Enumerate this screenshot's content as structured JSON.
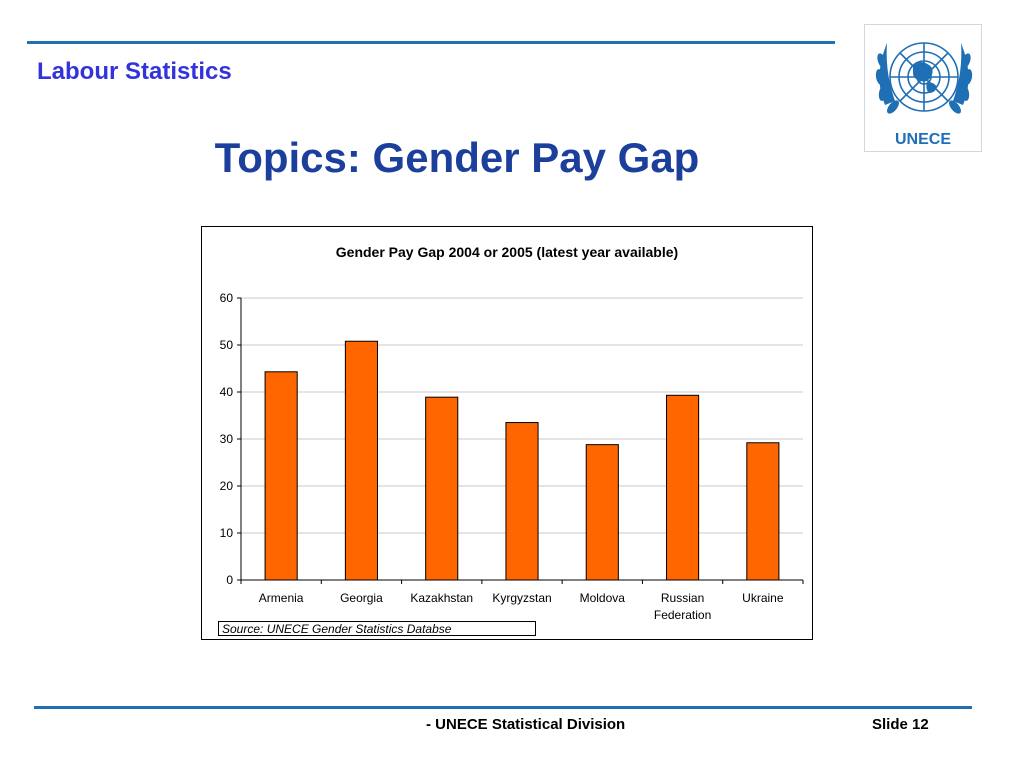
{
  "header": {
    "section_title": "Labour Statistics",
    "slide_title": "Topics: Gender Pay Gap"
  },
  "logo": {
    "text": "UNECE",
    "icon": "un-emblem-icon",
    "color": "#1f6fb5"
  },
  "chart_data": {
    "type": "bar",
    "title": "Gender Pay Gap 2004 or 2005 (latest year available)",
    "categories": [
      [
        "Armenia"
      ],
      [
        "Georgia"
      ],
      [
        "Kazakhstan"
      ],
      [
        "Kyrgyzstan"
      ],
      [
        "Moldova"
      ],
      [
        "Russian",
        "Federation"
      ],
      [
        "Ukraine"
      ]
    ],
    "values": [
      44.3,
      50.8,
      38.9,
      33.5,
      28.8,
      39.3,
      29.2
    ],
    "ylim": [
      0,
      60
    ],
    "yticks": [
      0,
      10,
      20,
      30,
      40,
      50,
      60
    ],
    "xlabel": "",
    "ylabel": "",
    "grid": true,
    "legend": "none",
    "bar_color": "#ff6600",
    "source": "Source: UNECE Gender Statistics Databse"
  },
  "footer": {
    "center": "- UNECE Statistical Division",
    "slide_number": "Slide 12"
  },
  "colors": {
    "accent": "#1f6fb5",
    "section_title": "#3333dd",
    "slide_title": "#1c3f9c"
  }
}
